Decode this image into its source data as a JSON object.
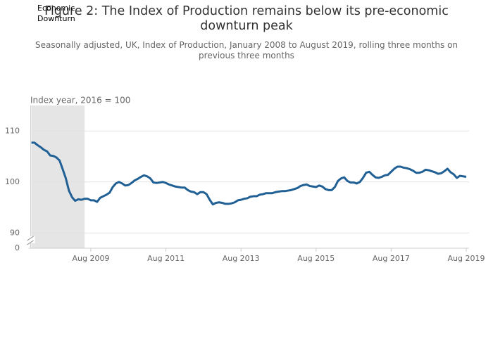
{
  "chart_data": {
    "type": "line",
    "title": "Figure 2: The Index of Production remains below its pre-economic downturn peak",
    "subtitle": "Seasonally adjusted, UK, Index of Production, January 2008 to August 2019, rolling three months on previous three months",
    "y_axis_label": "Index year, 2016 = 100",
    "shaded_region": {
      "label": "Economic Downturn",
      "start": "Jun 2008",
      "end": "Jun 2009",
      "color": "#e5e5e5"
    },
    "x": [
      "Jan 2008",
      "Feb 2008",
      "Mar 2008",
      "Apr 2008",
      "May 2008",
      "Jun 2008",
      "Jul 2008",
      "Aug 2008",
      "Sep 2008",
      "Oct 2008",
      "Nov 2008",
      "Dec 2008",
      "Jan 2009",
      "Feb 2009",
      "Mar 2009",
      "Apr 2009",
      "May 2009",
      "Jun 2009",
      "Jul 2009",
      "Aug 2009",
      "Sep 2009",
      "Oct 2009",
      "Nov 2009",
      "Dec 2009",
      "Jan 2010",
      "Feb 2010",
      "Mar 2010",
      "Apr 2010",
      "May 2010",
      "Jun 2010",
      "Jul 2010",
      "Aug 2010",
      "Sep 2010",
      "Oct 2010",
      "Nov 2010",
      "Dec 2010",
      "Jan 2011",
      "Feb 2011",
      "Mar 2011",
      "Apr 2011",
      "May 2011",
      "Jun 2011",
      "Jul 2011",
      "Aug 2011",
      "Sep 2011",
      "Oct 2011",
      "Nov 2011",
      "Dec 2011",
      "Jan 2012",
      "Feb 2012",
      "Mar 2012",
      "Apr 2012",
      "May 2012",
      "Jun 2012",
      "Jul 2012",
      "Aug 2012",
      "Sep 2012",
      "Oct 2012",
      "Nov 2012",
      "Dec 2012",
      "Jan 2013",
      "Feb 2013",
      "Mar 2013",
      "Apr 2013",
      "May 2013",
      "Jun 2013",
      "Jul 2013",
      "Aug 2013",
      "Sep 2013",
      "Oct 2013",
      "Nov 2013",
      "Dec 2013",
      "Jan 2014",
      "Feb 2014",
      "Mar 2014",
      "Apr 2014",
      "May 2014",
      "Jun 2014",
      "Jul 2014",
      "Aug 2014",
      "Sep 2014",
      "Oct 2014",
      "Nov 2014",
      "Dec 2014",
      "Jan 2015",
      "Feb 2015",
      "Mar 2015",
      "Apr 2015",
      "May 2015",
      "Jun 2015",
      "Jul 2015",
      "Aug 2015",
      "Sep 2015",
      "Oct 2015",
      "Nov 2015",
      "Dec 2015",
      "Jan 2016",
      "Feb 2016",
      "Mar 2016",
      "Apr 2016",
      "May 2016",
      "Jun 2016",
      "Jul 2016",
      "Aug 2016",
      "Sep 2016",
      "Oct 2016",
      "Nov 2016",
      "Dec 2016",
      "Jan 2017",
      "Feb 2017",
      "Mar 2017",
      "Apr 2017",
      "May 2017",
      "Jun 2017",
      "Jul 2017",
      "Aug 2017",
      "Sep 2017",
      "Oct 2017",
      "Nov 2017",
      "Dec 2017",
      "Jan 2018",
      "Feb 2018",
      "Mar 2018",
      "Apr 2018",
      "May 2018",
      "Jun 2018",
      "Jul 2018",
      "Aug 2018",
      "Sep 2018",
      "Oct 2018",
      "Nov 2018",
      "Dec 2018",
      "Jan 2019",
      "Feb 2019",
      "Mar 2019",
      "Apr 2019",
      "May 2019",
      "Jun 2019",
      "Jul 2019",
      "Aug 2019"
    ],
    "series": [
      {
        "name": "Index of Production",
        "color": "#206095",
        "values": [
          107.7,
          107.7,
          107.2,
          106.8,
          106.3,
          106.0,
          105.2,
          105.1,
          104.8,
          104.2,
          102.5,
          100.7,
          98.3,
          97.0,
          96.3,
          96.6,
          96.5,
          96.7,
          96.7,
          96.4,
          96.4,
          96.1,
          96.9,
          97.2,
          97.5,
          97.9,
          99.0,
          99.7,
          100.0,
          99.7,
          99.3,
          99.4,
          99.8,
          100.3,
          100.6,
          101.0,
          101.3,
          101.1,
          100.7,
          99.9,
          99.8,
          99.9,
          100.0,
          99.8,
          99.5,
          99.3,
          99.1,
          99.0,
          98.9,
          98.9,
          98.4,
          98.1,
          98.0,
          97.6,
          98.0,
          98.0,
          97.6,
          96.5,
          95.6,
          95.9,
          96.0,
          95.9,
          95.7,
          95.7,
          95.8,
          96.0,
          96.4,
          96.5,
          96.7,
          96.8,
          97.1,
          97.2,
          97.2,
          97.5,
          97.6,
          97.8,
          97.8,
          97.8,
          98.0,
          98.1,
          98.2,
          98.2,
          98.3,
          98.4,
          98.6,
          98.8,
          99.2,
          99.4,
          99.5,
          99.2,
          99.1,
          99.0,
          99.3,
          99.1,
          98.6,
          98.4,
          98.4,
          99.0,
          100.2,
          100.7,
          100.9,
          100.2,
          99.9,
          99.9,
          99.7,
          100.0,
          100.8,
          101.8,
          102.0,
          101.4,
          100.9,
          100.8,
          101.0,
          101.3,
          101.4,
          102.0,
          102.6,
          103.0,
          103.0,
          102.8,
          102.7,
          102.5,
          102.2,
          101.8,
          101.8,
          102.0,
          102.4,
          102.3,
          102.1,
          101.9,
          101.6,
          101.7,
          102.1,
          102.6,
          101.9,
          101.5,
          100.8,
          101.2,
          101.1,
          101.0
        ]
      }
    ],
    "xticks": [
      "Aug 2009",
      "Aug 2011",
      "Aug 2013",
      "Aug 2015",
      "Aug 2017",
      "Aug 2019"
    ],
    "ylim": [
      87,
      115
    ],
    "yticks": [
      0,
      90,
      100,
      110
    ],
    "axis_break": true,
    "grid": true
  }
}
